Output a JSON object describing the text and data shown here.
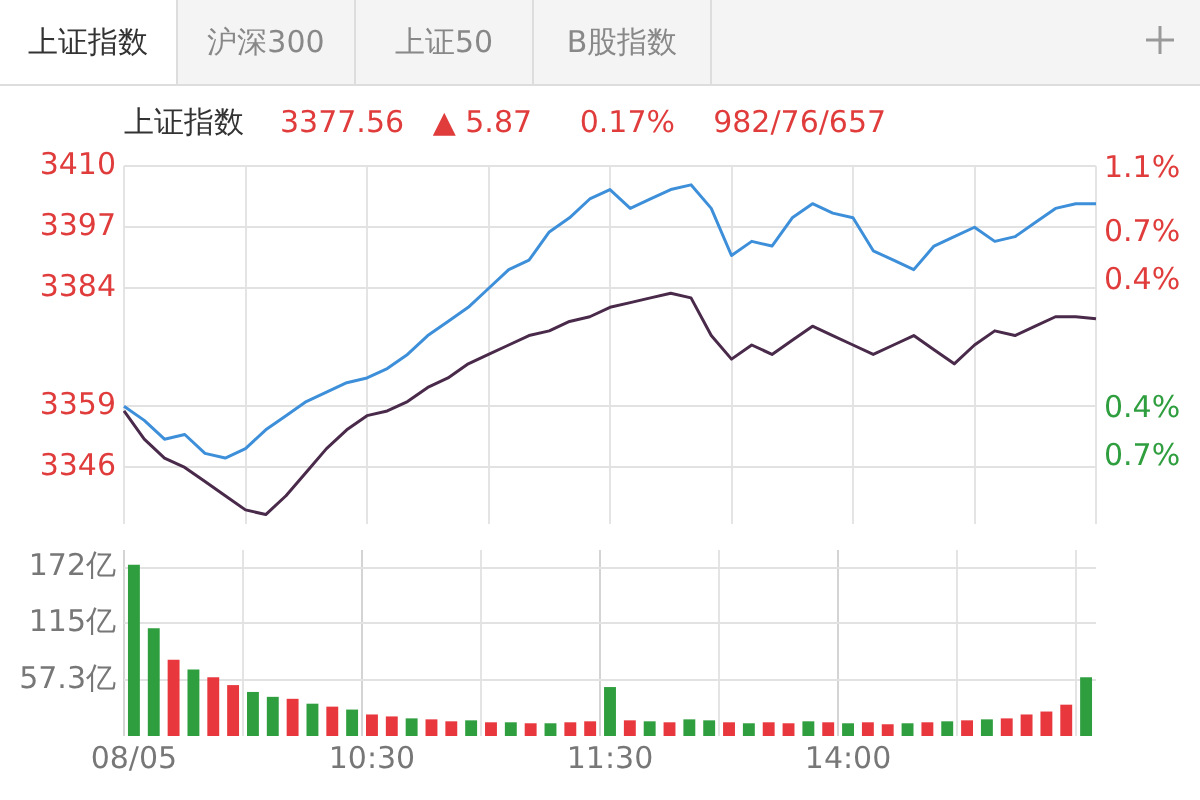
{
  "chart_data": [
    {
      "type": "line",
      "title": "上证指数",
      "subtitle": "3377.56   ▲ 5.87     0.17%    982/76/657",
      "annotations": [
        "上证指数",
        "沪深300",
        "上证50",
        "B股指数"
      ],
      "series": [
        {
          "color": "#3d8fd9",
          "values": [
            3359,
            3356,
            3352,
            3353,
            3349,
            3348,
            3350,
            3354,
            3357,
            3360,
            3362,
            3364,
            3365,
            3367,
            3370,
            3374,
            3377,
            3380,
            3384,
            3388,
            3390,
            3396,
            3399,
            3403,
            3405,
            3401,
            3403,
            3405,
            3406,
            3401,
            3391,
            3394,
            3393,
            3399,
            3402,
            3400,
            3399,
            3392,
            3390,
            3388,
            3393,
            3395,
            3397,
            3394,
            3395,
            3398,
            3401,
            3402,
            3402
          ]
        },
        {
          "color": "#4a2a4a",
          "values": [
            3358,
            3352,
            3348,
            3346,
            3343,
            3340,
            3337,
            3336,
            3340,
            3345,
            3350,
            3354,
            3357,
            3358,
            3360,
            3363,
            3365,
            3368,
            3370,
            3372,
            3374,
            3375,
            3377,
            3378,
            3380,
            3381,
            3382,
            3383,
            3382,
            3374,
            3369,
            3372,
            3370,
            3373,
            3376,
            3374,
            3372,
            3370,
            3372,
            3374,
            3371,
            3368,
            3372,
            3375,
            3374,
            3376,
            3378,
            3378,
            3377.56
          ]
        }
      ],
      "ylim": [
        3334,
        3410
      ],
      "yticks": [
        3346,
        3359,
        3384,
        3397,
        3410
      ],
      "y2lim": [
        -1.12,
        1.12
      ],
      "y2ticks": [
        {
          "value": 1.1,
          "label": "1.1%"
        },
        {
          "value": 0.7,
          "label": "0.7%"
        },
        {
          "value": 0.4,
          "label": "0.4%"
        },
        {
          "value": -0.4,
          "label": "0.4%"
        },
        {
          "value": -0.7,
          "label": "0.7%"
        }
      ],
      "grid": true,
      "tick_labels": "y",
      "marker": "none",
      "line_style": "solid"
    },
    {
      "type": "bar",
      "categories": [
        "08/05",
        null,
        null,
        null,
        null,
        null,
        null,
        null,
        null,
        null,
        null,
        null,
        "10:30",
        null,
        null,
        null,
        null,
        null,
        null,
        null,
        null,
        null,
        null,
        null,
        "11:30",
        null,
        null,
        null,
        null,
        null,
        null,
        null,
        null,
        null,
        null,
        null,
        "14:00",
        null,
        null,
        null,
        null,
        null,
        null,
        null,
        null,
        null,
        null,
        null,
        null
      ],
      "values": [
        175,
        110,
        78,
        68,
        60,
        52,
        45,
        40,
        38,
        33,
        30,
        27,
        22,
        20,
        18,
        17,
        15,
        16,
        14,
        14,
        13,
        13,
        14,
        15,
        50,
        16,
        15,
        14,
        17,
        16,
        14,
        13,
        14,
        13,
        15,
        14,
        13,
        14,
        12,
        13,
        14,
        15,
        16,
        17,
        18,
        22,
        25,
        32,
        60
      ],
      "colors": [
        "#2e9e3e",
        "#2e9e3e",
        "#e8383d",
        "#2e9e3e",
        "#e8383d",
        "#e8383d",
        "#2e9e3e",
        "#2e9e3e",
        "#e8383d",
        "#2e9e3e",
        "#e8383d",
        "#2e9e3e",
        "#e8383d",
        "#e8383d",
        "#2e9e3e",
        "#e8383d",
        "#e8383d",
        "#2e9e3e",
        "#e8383d",
        "#2e9e3e",
        "#e8383d",
        "#2e9e3e",
        "#e8383d",
        "#e8383d",
        "#2e9e3e",
        "#e8383d",
        "#2e9e3e",
        "#e8383d",
        "#2e9e3e",
        "#2e9e3e",
        "#e8383d",
        "#2e9e3e",
        "#e8383d",
        "#e8383d",
        "#2e9e3e",
        "#e8383d",
        "#2e9e3e",
        "#e8383d",
        "#e8383d",
        "#2e9e3e",
        "#e8383d",
        "#2e9e3e",
        "#e8383d",
        "#2e9e3e",
        "#e8383d",
        "#e8383d",
        "#e8383d",
        "#e8383d",
        "#2e9e3e"
      ],
      "ylim": [
        0,
        190
      ],
      "yticks": [
        {
          "value": 57.3,
          "label": "57.3亿"
        },
        {
          "value": 115,
          "label": "115亿"
        },
        {
          "value": 172,
          "label": "172亿"
        }
      ],
      "grid": true
    }
  ]
}
